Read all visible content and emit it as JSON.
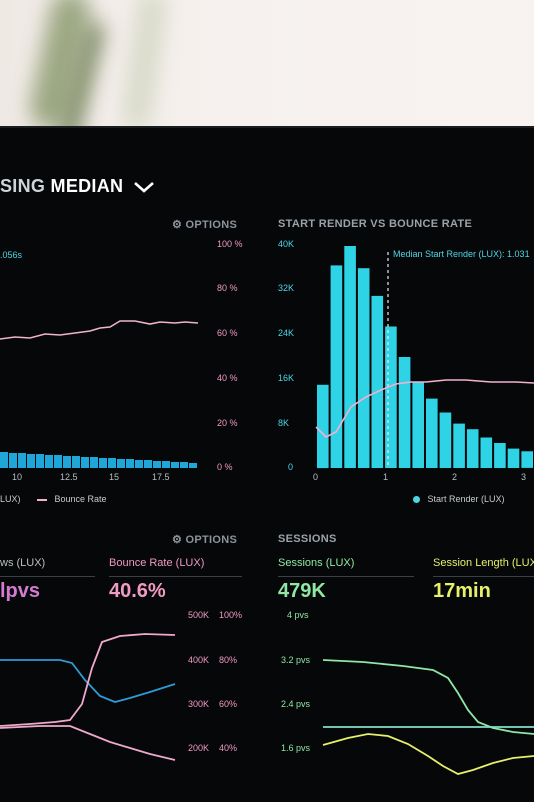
{
  "dashboard": {
    "title_partial": "SING",
    "title_main": "MEDIAN"
  },
  "panel_left_top": {
    "options_label": "OPTIONS",
    "partial_value": ".056s",
    "pct_axis": [
      "100 %",
      "80 %",
      "60 %",
      "40 %",
      "20 %",
      "0 %"
    ],
    "x_ticks": [
      "10",
      "12.5",
      "15",
      "17.5"
    ],
    "legend": [
      {
        "label": "LUX)"
      },
      {
        "label": "Bounce Rate"
      }
    ]
  },
  "panel_right_top": {
    "title": "START RENDER VS BOUNCE RATE",
    "marker_label": "Median Start Render (LUX): 1.031",
    "y_ticks": [
      "40K",
      "32K",
      "24K",
      "16K",
      "8K",
      "0"
    ],
    "x_ticks": [
      "0",
      "1",
      "2",
      "3"
    ],
    "legend": "Start Render (LUX)"
  },
  "panel_left_bottom": {
    "options_label": "OPTIONS",
    "metric1_label": "ws (LUX)",
    "metric1_value": "lpvs",
    "metric2_label": "Bounce Rate (LUX)",
    "metric2_value": "40.6%",
    "k_axis": [
      "500K",
      "400K",
      "300K",
      "200K"
    ],
    "pct_axis": [
      "100%",
      "80%",
      "60%",
      "40%"
    ]
  },
  "panel_right_bottom": {
    "title": "SESSIONS",
    "metric1_label": "Sessions (LUX)",
    "metric1_value": "479K",
    "metric2_label": "Session Length (LUX)",
    "metric2_value": "17min",
    "pvs_axis": [
      "4 pvs",
      "3.2 pvs",
      "2.4 pvs",
      "1.6 pvs"
    ]
  },
  "colors": {
    "cyan": "#2fd3e6",
    "pink": "#f0a8cb",
    "green": "#8fe6a5",
    "yellow": "#e8f06a",
    "blue": "#2e9bd6"
  },
  "chart_data": [
    {
      "type": "bar",
      "title": "START RENDER VS BOUNCE RATE",
      "x": [
        0.1,
        0.3,
        0.5,
        0.7,
        0.9,
        1.1,
        1.3,
        1.5,
        1.7,
        1.9,
        2.1,
        2.3,
        2.5,
        2.7,
        2.9,
        3.1
      ],
      "series": [
        {
          "name": "Start Render (LUX)",
          "values": [
            15000,
            36500,
            40000,
            36000,
            31000,
            25500,
            20000,
            15500,
            12500,
            10000,
            8000,
            7000,
            5500,
            4500,
            3500,
            3000
          ]
        }
      ],
      "ylim": [
        0,
        40000
      ],
      "xlim": [
        0,
        3.2
      ]
    }
  ]
}
